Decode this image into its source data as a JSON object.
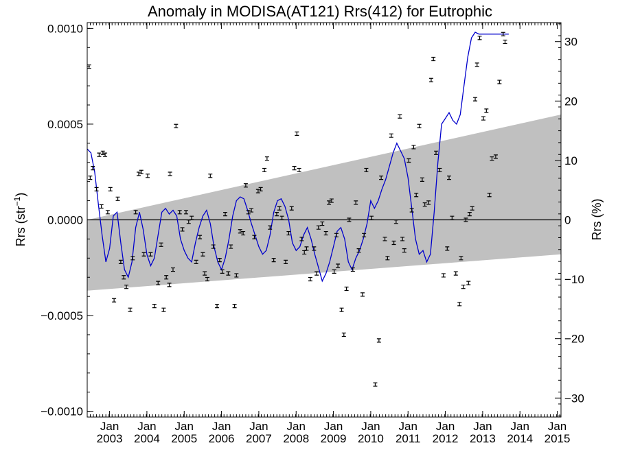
{
  "chart_data": {
    "type": "scatter",
    "title": "Anomaly in MODISA(AT121) Rrs(412) for Eutrophic",
    "ylabel_left": "Rrs (str",
    "ylabel_left_sup": "−1",
    "ylabel_left_close": ")",
    "ylabel_right": "Rrs (%)",
    "xlim": [
      2002.4,
      2015.1
    ],
    "ylim": [
      -0.00103,
      0.00103
    ],
    "ylim_right": [
      -33.2,
      33.2
    ],
    "grid": false,
    "colors": {
      "band": "#c0c0c0",
      "line": "#0000cc",
      "points": "#000000",
      "zero": "#000000"
    },
    "year_ticks": [
      {
        "x": 2003.0,
        "month": "Jan",
        "year": "2003"
      },
      {
        "x": 2004.0,
        "month": "Jan",
        "year": "2004"
      },
      {
        "x": 2005.0,
        "month": "Jan",
        "year": "2005"
      },
      {
        "x": 2006.0,
        "month": "Jan",
        "year": "2006"
      },
      {
        "x": 2007.0,
        "month": "Jan",
        "year": "2007"
      },
      {
        "x": 2008.0,
        "month": "Jan",
        "year": "2008"
      },
      {
        "x": 2009.0,
        "month": "Jan",
        "year": "2009"
      },
      {
        "x": 2010.0,
        "month": "Jan",
        "year": "2010"
      },
      {
        "x": 2011.0,
        "month": "Jan",
        "year": "2011"
      },
      {
        "x": 2012.0,
        "month": "Jan",
        "year": "2012"
      },
      {
        "x": 2013.0,
        "month": "Jan",
        "year": "2013"
      },
      {
        "x": 2014.0,
        "month": "Jan",
        "year": "2014"
      },
      {
        "x": 2015.0,
        "month": "Jan",
        "year": "2015"
      }
    ],
    "y_ticks_left": [
      {
        "value": 0.001,
        "label": "0.0010"
      },
      {
        "value": 0.0005,
        "label": "0.0005"
      },
      {
        "value": 0.0,
        "label": "0.0000"
      },
      {
        "value": -0.0005,
        "label": "−0.0005"
      },
      {
        "value": -0.001,
        "label": "−0.0010"
      }
    ],
    "y_ticks_right": [
      {
        "value": 30,
        "label": "30"
      },
      {
        "value": 20,
        "label": "20"
      },
      {
        "value": 10,
        "label": "10"
      },
      {
        "value": 0,
        "label": "0"
      },
      {
        "value": -10,
        "label": "−10"
      },
      {
        "value": -20,
        "label": "−20"
      },
      {
        "value": -30,
        "label": "−30"
      }
    ],
    "band": {
      "x": [
        2002.4,
        2015.1
      ],
      "upper": [
        0.0,
        0.00055
      ],
      "lower": [
        -0.00037,
        -0.00018
      ]
    },
    "points": [
      {
        "x": 2002.45,
        "y": 0.0008
      },
      {
        "x": 2002.48,
        "y": 0.00022
      },
      {
        "x": 2002.55,
        "y": 0.00027
      },
      {
        "x": 2002.65,
        "y": 0.00016
      },
      {
        "x": 2002.72,
        "y": 0.00034
      },
      {
        "x": 2002.78,
        "y": 7e-05
      },
      {
        "x": 2002.82,
        "y": 0.00035
      },
      {
        "x": 2002.88,
        "y": 0.00034
      },
      {
        "x": 2002.95,
        "y": 4e-05
      },
      {
        "x": 2003.02,
        "y": 0.00016
      },
      {
        "x": 2003.12,
        "y": -0.00042
      },
      {
        "x": 2003.22,
        "y": 0.00011
      },
      {
        "x": 2003.3,
        "y": -0.00022
      },
      {
        "x": 2003.38,
        "y": -0.0003
      },
      {
        "x": 2003.45,
        "y": -0.00035
      },
      {
        "x": 2003.55,
        "y": -0.00047
      },
      {
        "x": 2003.62,
        "y": -0.0002
      },
      {
        "x": 2003.7,
        "y": 4e-05
      },
      {
        "x": 2003.78,
        "y": 0.00024
      },
      {
        "x": 2003.85,
        "y": 0.00025
      },
      {
        "x": 2003.92,
        "y": -0.00018
      },
      {
        "x": 2004.02,
        "y": 0.00023
      },
      {
        "x": 2004.1,
        "y": -0.00018
      },
      {
        "x": 2004.2,
        "y": -0.00045
      },
      {
        "x": 2004.3,
        "y": -0.00033
      },
      {
        "x": 2004.38,
        "y": -0.00013
      },
      {
        "x": 2004.45,
        "y": -0.00047
      },
      {
        "x": 2004.52,
        "y": -0.0003
      },
      {
        "x": 2004.6,
        "y": -0.00034
      },
      {
        "x": 2004.62,
        "y": 0.00024
      },
      {
        "x": 2004.7,
        "y": -0.00026
      },
      {
        "x": 2004.78,
        "y": 0.00049
      },
      {
        "x": 2004.88,
        "y": 4e-05
      },
      {
        "x": 2004.95,
        "y": -5e-05
      },
      {
        "x": 2005.05,
        "y": 4e-05
      },
      {
        "x": 2005.12,
        "y": -1e-05
      },
      {
        "x": 2005.2,
        "y": 1e-05
      },
      {
        "x": 2005.32,
        "y": -0.00022
      },
      {
        "x": 2005.42,
        "y": -9e-05
      },
      {
        "x": 2005.5,
        "y": -0.00018
      },
      {
        "x": 2005.55,
        "y": -0.00028
      },
      {
        "x": 2005.62,
        "y": -0.00031
      },
      {
        "x": 2005.7,
        "y": 0.00023
      },
      {
        "x": 2005.78,
        "y": -0.00014
      },
      {
        "x": 2005.88,
        "y": -0.00045
      },
      {
        "x": 2005.95,
        "y": -0.00021
      },
      {
        "x": 2006.02,
        "y": -0.00027
      },
      {
        "x": 2006.1,
        "y": 3e-05
      },
      {
        "x": 2006.18,
        "y": -0.00028
      },
      {
        "x": 2006.25,
        "y": -0.00014
      },
      {
        "x": 2006.35,
        "y": -0.00045
      },
      {
        "x": 2006.4,
        "y": -0.00029
      },
      {
        "x": 2006.5,
        "y": -6e-05
      },
      {
        "x": 2006.58,
        "y": -7e-05
      },
      {
        "x": 2006.65,
        "y": 0.00018
      },
      {
        "x": 2006.72,
        "y": 4e-05
      },
      {
        "x": 2006.8,
        "y": 5e-05
      },
      {
        "x": 2006.88,
        "y": -9e-05
      },
      {
        "x": 2006.98,
        "y": 0.00015
      },
      {
        "x": 2007.05,
        "y": 0.00016
      },
      {
        "x": 2007.15,
        "y": 0.00026
      },
      {
        "x": 2007.22,
        "y": 0.00032
      },
      {
        "x": 2007.3,
        "y": -4e-05
      },
      {
        "x": 2007.4,
        "y": -0.00021
      },
      {
        "x": 2007.48,
        "y": 3e-05
      },
      {
        "x": 2007.55,
        "y": 6e-05
      },
      {
        "x": 2007.62,
        "y": 1e-05
      },
      {
        "x": 2007.72,
        "y": -0.00022
      },
      {
        "x": 2007.8,
        "y": -7e-05
      },
      {
        "x": 2007.88,
        "y": 6e-05
      },
      {
        "x": 2007.95,
        "y": 0.00027
      },
      {
        "x": 2008.02,
        "y": 0.00045
      },
      {
        "x": 2008.08,
        "y": 0.00026
      },
      {
        "x": 2008.15,
        "y": -0.0001
      },
      {
        "x": 2008.22,
        "y": -0.00017
      },
      {
        "x": 2008.28,
        "y": -0.00015
      },
      {
        "x": 2008.38,
        "y": -0.00031
      },
      {
        "x": 2008.48,
        "y": -0.00015
      },
      {
        "x": 2008.55,
        "y": -0.00028
      },
      {
        "x": 2008.6,
        "y": -4e-05
      },
      {
        "x": 2008.7,
        "y": -2e-05
      },
      {
        "x": 2008.8,
        "y": -7e-05
      },
      {
        "x": 2008.88,
        "y": 9e-05
      },
      {
        "x": 2008.95,
        "y": 0.0001
      },
      {
        "x": 2009.02,
        "y": -0.00027
      },
      {
        "x": 2009.08,
        "y": -8e-05
      },
      {
        "x": 2009.12,
        "y": -0.00024
      },
      {
        "x": 2009.22,
        "y": -0.00047
      },
      {
        "x": 2009.28,
        "y": -0.0006
      },
      {
        "x": 2009.35,
        "y": -0.00036
      },
      {
        "x": 2009.42,
        "y": 0.0
      },
      {
        "x": 2009.52,
        "y": -0.00026
      },
      {
        "x": 2009.6,
        "y": 9e-05
      },
      {
        "x": 2009.68,
        "y": -0.00016
      },
      {
        "x": 2009.78,
        "y": -0.00039
      },
      {
        "x": 2009.82,
        "y": -8e-05
      },
      {
        "x": 2009.88,
        "y": 0.00026
      },
      {
        "x": 2010.02,
        "y": 1e-05
      },
      {
        "x": 2010.12,
        "y": -0.00086
      },
      {
        "x": 2010.22,
        "y": -0.00063
      },
      {
        "x": 2010.28,
        "y": 0.00022
      },
      {
        "x": 2010.38,
        "y": -0.0001
      },
      {
        "x": 2010.45,
        "y": -0.0002
      },
      {
        "x": 2010.55,
        "y": 0.00044
      },
      {
        "x": 2010.62,
        "y": -0.00012
      },
      {
        "x": 2010.68,
        "y": -1e-05
      },
      {
        "x": 2010.78,
        "y": 0.00054
      },
      {
        "x": 2010.85,
        "y": -0.0001
      },
      {
        "x": 2010.9,
        "y": -0.00016
      },
      {
        "x": 2011.02,
        "y": 0.00031
      },
      {
        "x": 2011.1,
        "y": 5e-05
      },
      {
        "x": 2011.15,
        "y": 0.00038
      },
      {
        "x": 2011.22,
        "y": 0.00013
      },
      {
        "x": 2011.3,
        "y": 0.00049
      },
      {
        "x": 2011.38,
        "y": 0.00021
      },
      {
        "x": 2011.45,
        "y": 8e-05
      },
      {
        "x": 2011.55,
        "y": 9e-05
      },
      {
        "x": 2011.62,
        "y": 0.00073
      },
      {
        "x": 2011.68,
        "y": 0.00084
      },
      {
        "x": 2011.75,
        "y": 0.00035
      },
      {
        "x": 2011.85,
        "y": 0.00026
      },
      {
        "x": 2011.95,
        "y": -0.00029
      },
      {
        "x": 2012.05,
        "y": -0.00015
      },
      {
        "x": 2012.1,
        "y": 0.00022
      },
      {
        "x": 2012.18,
        "y": 1e-05
      },
      {
        "x": 2012.28,
        "y": -0.00028
      },
      {
        "x": 2012.38,
        "y": -0.00044
      },
      {
        "x": 2012.42,
        "y": -0.0002
      },
      {
        "x": 2012.48,
        "y": -0.00035
      },
      {
        "x": 2012.55,
        "y": 0.0
      },
      {
        "x": 2012.62,
        "y": -0.00033
      },
      {
        "x": 2012.65,
        "y": 3e-05
      },
      {
        "x": 2012.72,
        "y": 6e-05
      },
      {
        "x": 2012.8,
        "y": 0.00063
      },
      {
        "x": 2012.85,
        "y": 0.00081
      },
      {
        "x": 2012.92,
        "y": 0.00095
      },
      {
        "x": 2013.02,
        "y": 0.00053
      },
      {
        "x": 2013.1,
        "y": 0.00057
      },
      {
        "x": 2013.18,
        "y": 0.00013
      },
      {
        "x": 2013.25,
        "y": 0.00032
      },
      {
        "x": 2013.35,
        "y": 0.00033
      },
      {
        "x": 2013.45,
        "y": 0.00072
      },
      {
        "x": 2013.55,
        "y": 0.00097
      },
      {
        "x": 2013.6,
        "y": 0.00093
      }
    ],
    "line": {
      "x": [
        2002.4,
        2002.5,
        2002.6,
        2002.7,
        2002.8,
        2002.9,
        2003.0,
        2003.1,
        2003.2,
        2003.3,
        2003.4,
        2003.5,
        2003.6,
        2003.7,
        2003.8,
        2003.9,
        2004.0,
        2004.1,
        2004.2,
        2004.3,
        2004.4,
        2004.5,
        2004.6,
        2004.7,
        2004.8,
        2004.9,
        2005.0,
        2005.1,
        2005.2,
        2005.3,
        2005.4,
        2005.5,
        2005.6,
        2005.7,
        2005.8,
        2005.9,
        2006.0,
        2006.1,
        2006.2,
        2006.3,
        2006.4,
        2006.5,
        2006.6,
        2006.7,
        2006.8,
        2006.9,
        2007.0,
        2007.1,
        2007.2,
        2007.3,
        2007.4,
        2007.5,
        2007.6,
        2007.7,
        2007.8,
        2007.9,
        2008.0,
        2008.1,
        2008.2,
        2008.3,
        2008.4,
        2008.5,
        2008.6,
        2008.7,
        2008.8,
        2008.9,
        2009.0,
        2009.1,
        2009.2,
        2009.3,
        2009.4,
        2009.5,
        2009.6,
        2009.7,
        2009.8,
        2009.9,
        2010.0,
        2010.1,
        2010.2,
        2010.3,
        2010.4,
        2010.5,
        2010.6,
        2010.7,
        2010.8,
        2010.9,
        2011.0,
        2011.1,
        2011.2,
        2011.3,
        2011.4,
        2011.5,
        2011.6,
        2011.7,
        2011.8,
        2011.9,
        2012.0,
        2012.1,
        2012.2,
        2012.3,
        2012.4,
        2012.5,
        2012.6,
        2012.7,
        2012.8,
        2012.9,
        2013.0,
        2013.1,
        2013.2,
        2013.3,
        2013.4,
        2013.5,
        2013.6,
        2013.7
      ],
      "y": [
        0.00037,
        0.00035,
        0.00025,
        8e-05,
        -8e-05,
        -0.00022,
        -0.00015,
        2e-05,
        4e-05,
        -0.00012,
        -0.00026,
        -0.0003,
        -0.00022,
        -4e-05,
        4e-05,
        -5e-05,
        -0.00018,
        -0.00024,
        -0.0002,
        -8e-05,
        4e-05,
        6e-05,
        3e-05,
        5e-05,
        2e-05,
        -0.0001,
        -0.00016,
        -0.0002,
        -0.00022,
        -0.00012,
        -4e-05,
        2e-05,
        5e-05,
        -2e-05,
        -0.00014,
        -0.00022,
        -0.00026,
        -0.0002,
        -0.0001,
        2e-05,
        0.0001,
        0.00012,
        0.00011,
        5e-05,
        -2e-05,
        -8e-05,
        -0.00014,
        -0.00018,
        -0.00016,
        -8e-05,
        4e-05,
        0.0001,
        0.00011,
        7e-05,
        0.0,
        -0.00012,
        -0.00016,
        -0.00014,
        -8e-05,
        -4e-05,
        -0.0001,
        -0.00018,
        -0.00025,
        -0.00032,
        -0.00028,
        -0.00022,
        -0.00014,
        -6e-05,
        -4e-05,
        -0.0001,
        -0.00022,
        -0.00026,
        -0.0002,
        -0.00016,
        -0.0001,
        -2e-05,
        0.0001,
        6e-05,
        0.0001,
        0.00016,
        0.00021,
        0.00028,
        0.00035,
        0.0004,
        0.00036,
        0.00032,
        0.00022,
        6e-05,
        -0.0001,
        -0.00018,
        -0.00016,
        -0.00022,
        -0.00018,
        4e-05,
        0.0003,
        0.0005,
        0.00053,
        0.00056,
        0.00052,
        0.0005,
        0.00055,
        0.0007,
        0.00085,
        0.00095,
        0.00098,
        0.00097,
        0.00097,
        0.00097,
        0.00097,
        0.00097,
        0.00097,
        0.00097,
        0.00097,
        0.00097
      ]
    }
  }
}
